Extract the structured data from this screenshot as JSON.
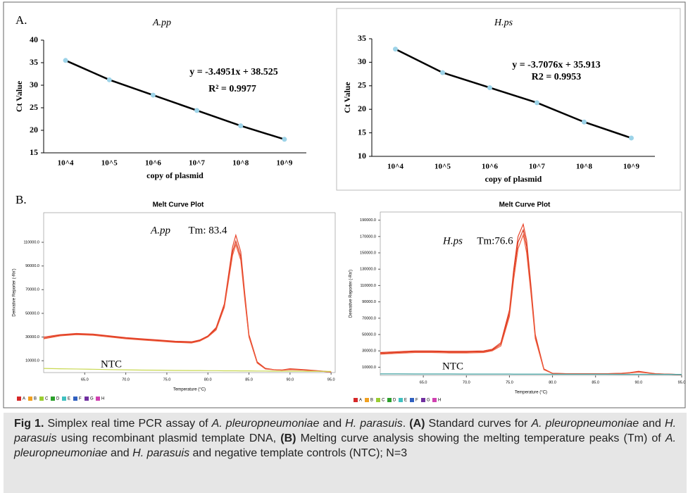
{
  "chart_data": [
    {
      "type": "scatter",
      "panel": "A.",
      "title": "A.pp",
      "xlabel": "copy of plasmid",
      "ylabel": "Ct Value",
      "categories": [
        "10^4",
        "10^5",
        "10^6",
        "10^7",
        "10^8",
        "10^9"
      ],
      "values": [
        35.5,
        31.2,
        27.8,
        24.4,
        21.0,
        18.0
      ],
      "color": "#000000",
      "marker_color": "#9cd3e8",
      "ylim": [
        15,
        40
      ],
      "yticks": [
        15,
        20,
        25,
        30,
        35,
        40
      ],
      "equation": [
        "y = -3.4951x + 38.525",
        "R² = 0.9977"
      ]
    },
    {
      "type": "scatter",
      "title": "H.ps",
      "xlabel": "copy of plasmid",
      "ylabel": "Ct Value",
      "categories": [
        "10^4",
        "10^5",
        "10^6",
        "10^7",
        "10^8",
        "10^9"
      ],
      "values": [
        32.8,
        27.8,
        24.6,
        21.4,
        17.3,
        13.9
      ],
      "color": "#000000",
      "marker_color": "#9cd3e8",
      "ylim": [
        10,
        35
      ],
      "yticks": [
        10,
        15,
        20,
        25,
        30,
        35
      ],
      "equation": [
        "y = -3.7076x + 35.913",
        "R2 = 0.9953"
      ]
    },
    {
      "type": "line",
      "panel": "B.",
      "title": "Melt Curve Plot",
      "xlabel": "Temperature (°C)",
      "ylabel": "Derivative Reporter (-Rn')",
      "annotations": [
        "A.pp",
        "Tm: 83.4",
        "NTC"
      ],
      "x": [
        60,
        62,
        64,
        66,
        68,
        70,
        72,
        74,
        76,
        78,
        79,
        80,
        81,
        82,
        82.5,
        83,
        83.4,
        84,
        84.5,
        85,
        86,
        87,
        88,
        89,
        90,
        92,
        95
      ],
      "series": [
        {
          "color": "#e8442a",
          "values": [
            30000,
            32000,
            33000,
            32500,
            31000,
            29500,
            28500,
            27500,
            26500,
            26000,
            27500,
            31000,
            38000,
            58000,
            82000,
            106000,
            116000,
            102000,
            66000,
            32000,
            9000,
            3500,
            2500,
            2000,
            2500,
            2000,
            500
          ]
        },
        {
          "color": "#d93a20",
          "values": [
            29000,
            31500,
            32500,
            32000,
            30500,
            29000,
            28000,
            27000,
            26000,
            25500,
            27000,
            30500,
            37000,
            56000,
            79000,
            102000,
            111000,
            98000,
            63000,
            30500,
            8500,
            3500,
            2500,
            2200,
            3200,
            2300,
            600
          ]
        },
        {
          "color": "#f06040",
          "values": [
            28500,
            31000,
            32000,
            31500,
            30000,
            28500,
            27500,
            26500,
            25500,
            25000,
            26500,
            30000,
            36000,
            55000,
            77000,
            99000,
            108000,
            95000,
            61000,
            30000,
            8000,
            3000,
            2400,
            2100,
            2800,
            2000,
            500
          ]
        },
        {
          "color": "#c8d850",
          "values": [
            3500,
            3200,
            3000,
            2800,
            2500,
            2300,
            2100,
            2000,
            1800,
            1700,
            1700,
            1600,
            1600,
            1500,
            1500,
            1500,
            1500,
            1400,
            1400,
            1400,
            1300,
            1300,
            1200,
            1200,
            1200,
            1100,
            1000
          ]
        }
      ],
      "xlim": [
        60,
        95.5
      ],
      "ylim": [
        0,
        135000
      ],
      "xticks": [
        {
          "value": 65,
          "label": "65.0"
        },
        {
          "value": 70,
          "label": "70.0"
        },
        {
          "value": 75,
          "label": "75.0"
        },
        {
          "value": 80,
          "label": "80.0"
        },
        {
          "value": 85,
          "label": "85.0"
        },
        {
          "value": 90,
          "label": "90.0"
        },
        {
          "value": 95,
          "label": "95.0"
        }
      ],
      "yticks": [
        {
          "value": 10000,
          "label": "10000.0"
        },
        {
          "value": 30000,
          "label": "30000.0"
        },
        {
          "value": 50000,
          "label": "50000.0"
        },
        {
          "value": 70000,
          "label": "70000.0"
        },
        {
          "value": 90000,
          "label": "90000.0"
        },
        {
          "value": 110000,
          "label": "110000.0"
        }
      ],
      "legend": [
        {
          "label": "A",
          "color": "#d62728"
        },
        {
          "label": "B",
          "color": "#f0a020"
        },
        {
          "label": "C",
          "color": "#9acd32"
        },
        {
          "label": "D",
          "color": "#2ca02c"
        },
        {
          "label": "E",
          "color": "#40c0c0"
        },
        {
          "label": "F",
          "color": "#3060c0"
        },
        {
          "label": "G",
          "color": "#7030a0"
        },
        {
          "label": "H",
          "color": "#d040b0"
        }
      ]
    },
    {
      "type": "line",
      "title": "Melt Curve Plot",
      "xlabel": "Temperature (°C)",
      "ylabel": "Derivative Reporter (-Rn')",
      "annotations": [
        "H.ps",
        "Tm:76.6",
        "NTC"
      ],
      "x": [
        60,
        62,
        64,
        66,
        68,
        70,
        72,
        73,
        74,
        75,
        75.5,
        76,
        76.6,
        77,
        77.5,
        78,
        79,
        80,
        82,
        84,
        86,
        88,
        89,
        90,
        91,
        92,
        95
      ],
      "series": [
        {
          "color": "#e8442a",
          "values": [
            28000,
            29000,
            30000,
            30000,
            29500,
            29500,
            30000,
            32000,
            40000,
            80000,
            130000,
            170000,
            185000,
            165000,
            110000,
            50000,
            8000,
            2500,
            2000,
            2000,
            2000,
            2500,
            3500,
            5000,
            3500,
            2000,
            1000
          ]
        },
        {
          "color": "#d93a20",
          "values": [
            27000,
            28000,
            29000,
            29000,
            28500,
            28500,
            29000,
            31000,
            38000,
            76000,
            125000,
            163000,
            178000,
            158000,
            105000,
            47000,
            7500,
            2500,
            2000,
            2000,
            2000,
            2500,
            3000,
            4500,
            3200,
            2000,
            1000
          ]
        },
        {
          "color": "#f06040",
          "values": [
            26000,
            27000,
            28000,
            28000,
            27500,
            27500,
            28000,
            30000,
            36000,
            72000,
            118000,
            155000,
            172000,
            150000,
            100000,
            45000,
            7000,
            2300,
            1800,
            1800,
            1800,
            2200,
            3000,
            4000,
            3000,
            1800,
            900
          ]
        },
        {
          "color": "#40a0a0",
          "values": [
            1800,
            1800,
            1700,
            1700,
            1700,
            1600,
            1600,
            1600,
            1600,
            1600,
            1500,
            1500,
            1500,
            1500,
            1500,
            1500,
            1500,
            1400,
            1400,
            1400,
            1400,
            1300,
            1300,
            1300,
            1300,
            1300,
            1200
          ]
        }
      ],
      "xlim": [
        60,
        95
      ],
      "ylim": [
        0,
        200000
      ],
      "xticks": [
        {
          "value": 65,
          "label": "65.0"
        },
        {
          "value": 70,
          "label": "70.0"
        },
        {
          "value": 75,
          "label": "75.0"
        },
        {
          "value": 80,
          "label": "80.0"
        },
        {
          "value": 85,
          "label": "85.0"
        },
        {
          "value": 90,
          "label": "90.0"
        },
        {
          "value": 95,
          "label": "95.0"
        }
      ],
      "yticks": [
        {
          "value": 10000,
          "label": "10000.0"
        },
        {
          "value": 30000,
          "label": "30000.0"
        },
        {
          "value": 50000,
          "label": "50000.0"
        },
        {
          "value": 70000,
          "label": "70000.0"
        },
        {
          "value": 90000,
          "label": "90000.0"
        },
        {
          "value": 110000,
          "label": "110000.0"
        },
        {
          "value": 130000,
          "label": "130000.0"
        },
        {
          "value": 150000,
          "label": "150000.0"
        },
        {
          "value": 170000,
          "label": "170000.0"
        },
        {
          "value": 190000,
          "label": "190000.0"
        }
      ],
      "legend": [
        {
          "label": "A",
          "color": "#d62728"
        },
        {
          "label": "B",
          "color": "#f0a020"
        },
        {
          "label": "C",
          "color": "#9acd32"
        },
        {
          "label": "D",
          "color": "#2ca02c"
        },
        {
          "label": "E",
          "color": "#40c0c0"
        },
        {
          "label": "F",
          "color": "#3060c0"
        },
        {
          "label": "G",
          "color": "#7030a0"
        },
        {
          "label": "H",
          "color": "#d040b0"
        }
      ]
    }
  ],
  "caption": [
    {
      "text": "Fig 1.",
      "style": "bold"
    },
    {
      "text": " Simplex real time PCR assay of ",
      "style": "normal"
    },
    {
      "text": "A. pleuropneumoniae",
      "style": "italic"
    },
    {
      "text": " and ",
      "style": "normal"
    },
    {
      "text": "H. parasuis",
      "style": "italic"
    },
    {
      "text": ". ",
      "style": "normal"
    },
    {
      "text": "(A)",
      "style": "bold"
    },
    {
      "text": " Standard curves for ",
      "style": "normal"
    },
    {
      "text": "A. pleuropneumoniae",
      "style": "italic"
    },
    {
      "text": " and ",
      "style": "normal"
    },
    {
      "text": "H. parasuis",
      "style": "italic"
    },
    {
      "text": " using recombinant plasmid template DNA, ",
      "style": "normal"
    },
    {
      "text": "(B)",
      "style": "bold"
    },
    {
      "text": " Melting curve analysis showing the melting temperature peaks (Tm) of ",
      "style": "normal"
    },
    {
      "text": "A. pleuropneumoniae",
      "style": "italic"
    },
    {
      "text": " and ",
      "style": "normal"
    },
    {
      "text": "H. parasuis",
      "style": "italic"
    },
    {
      "text": " and negative template controls (NTC); N=3",
      "style": "normal"
    }
  ]
}
